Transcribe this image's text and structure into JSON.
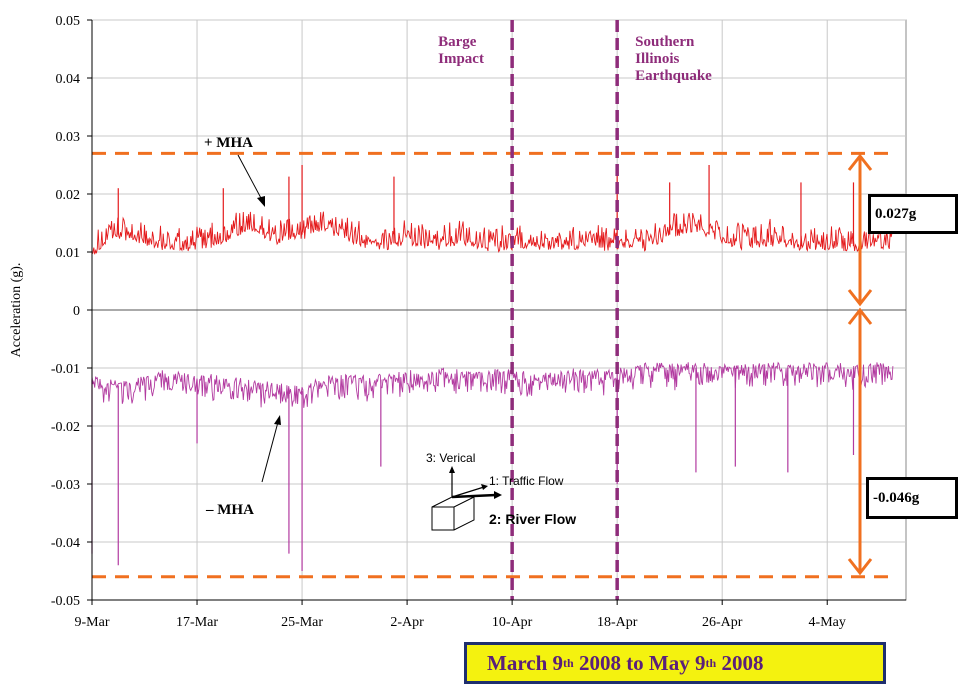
{
  "chart_data": {
    "type": "line",
    "title": "",
    "xlabel": "",
    "ylabel": "Acceleration (g).",
    "ylim": [
      -0.05,
      0.05
    ],
    "y_ticks": [
      "0.05",
      "0.04",
      "0.03",
      "0.02",
      "0.01",
      "0",
      "-0.01",
      "-0.02",
      "-0.03",
      "-0.04",
      "-0.05"
    ],
    "x_ticks": [
      "9-Mar",
      "17-Mar",
      "25-Mar",
      "2-Apr",
      "10-Apr",
      "18-Apr",
      "26-Apr",
      "4-May"
    ],
    "x_range": [
      "2008-03-09",
      "2008-05-10"
    ],
    "grid": true,
    "series": [
      {
        "name": "+ MHA",
        "color": "#e41a1c",
        "x": [
          "2008-03-09",
          "2008-03-11",
          "2008-03-13",
          "2008-03-15",
          "2008-03-17",
          "2008-03-19",
          "2008-03-21",
          "2008-03-23",
          "2008-03-25",
          "2008-03-27",
          "2008-03-29",
          "2008-03-31",
          "2008-04-02",
          "2008-04-04",
          "2008-04-06",
          "2008-04-08",
          "2008-04-10",
          "2008-04-12",
          "2008-04-14",
          "2008-04-16",
          "2008-04-18",
          "2008-04-20",
          "2008-04-22",
          "2008-04-24",
          "2008-04-26",
          "2008-04-28",
          "2008-04-30",
          "2008-05-02",
          "2008-05-04",
          "2008-05-06",
          "2008-05-08",
          "2008-05-09"
        ],
        "y": [
          0.01,
          0.013,
          0.012,
          0.011,
          0.011,
          0.012,
          0.014,
          0.012,
          0.013,
          0.014,
          0.012,
          0.011,
          0.012,
          0.011,
          0.012,
          0.011,
          0.011,
          0.011,
          0.011,
          0.011,
          0.011,
          0.011,
          0.013,
          0.014,
          0.012,
          0.011,
          0.012,
          0.011,
          0.011,
          0.011,
          0.011,
          0.011
        ],
        "peaks": [
          {
            "x": "2008-03-11",
            "y": 0.021
          },
          {
            "x": "2008-03-19",
            "y": 0.021
          },
          {
            "x": "2008-03-24",
            "y": 0.023
          },
          {
            "x": "2008-03-25",
            "y": 0.025
          },
          {
            "x": "2008-04-01",
            "y": 0.023
          },
          {
            "x": "2008-04-18",
            "y": 0.025
          },
          {
            "x": "2008-04-22",
            "y": 0.022
          },
          {
            "x": "2008-04-25",
            "y": 0.025
          },
          {
            "x": "2008-05-02",
            "y": 0.022
          },
          {
            "x": "2008-05-06",
            "y": 0.022
          }
        ]
      },
      {
        "name": "– MHA",
        "color": "#b23aa0",
        "x": [
          "2008-03-09",
          "2008-03-11",
          "2008-03-13",
          "2008-03-15",
          "2008-03-17",
          "2008-03-19",
          "2008-03-21",
          "2008-03-23",
          "2008-03-25",
          "2008-03-27",
          "2008-03-29",
          "2008-03-31",
          "2008-04-02",
          "2008-04-04",
          "2008-04-06",
          "2008-04-08",
          "2008-04-10",
          "2008-04-12",
          "2008-04-14",
          "2008-04-16",
          "2008-04-18",
          "2008-04-20",
          "2008-04-22",
          "2008-04-24",
          "2008-04-26",
          "2008-04-28",
          "2008-04-30",
          "2008-05-02",
          "2008-05-04",
          "2008-05-06",
          "2008-05-08",
          "2008-05-09"
        ],
        "y": [
          -0.012,
          -0.013,
          -0.012,
          -0.011,
          -0.012,
          -0.012,
          -0.013,
          -0.013,
          -0.014,
          -0.012,
          -0.012,
          -0.012,
          -0.011,
          -0.011,
          -0.011,
          -0.011,
          -0.011,
          -0.012,
          -0.011,
          -0.011,
          -0.011,
          -0.01,
          -0.01,
          -0.01,
          -0.01,
          -0.01,
          -0.01,
          -0.01,
          -0.01,
          -0.01,
          -0.01,
          -0.01
        ],
        "peaks": [
          {
            "x": "2008-03-09",
            "y": -0.042
          },
          {
            "x": "2008-03-11",
            "y": -0.044
          },
          {
            "x": "2008-03-17",
            "y": -0.023
          },
          {
            "x": "2008-03-24",
            "y": -0.042
          },
          {
            "x": "2008-03-25",
            "y": -0.045
          },
          {
            "x": "2008-03-31",
            "y": -0.027
          },
          {
            "x": "2008-04-18",
            "y": -0.03
          },
          {
            "x": "2008-04-24",
            "y": -0.028
          },
          {
            "x": "2008-04-27",
            "y": -0.027
          },
          {
            "x": "2008-05-01",
            "y": -0.028
          },
          {
            "x": "2008-05-06",
            "y": -0.025
          }
        ]
      }
    ],
    "threshold_lines": [
      {
        "y": 0.027,
        "color": "#f07020",
        "style": "dashed"
      },
      {
        "y": -0.046,
        "color": "#f07020",
        "style": "dashed"
      }
    ],
    "event_lines": [
      {
        "x": "2008-04-10",
        "label": [
          "Barge",
          "Impact"
        ],
        "color": "#8e2c7a"
      },
      {
        "x": "2008-04-18",
        "label": [
          "Southern",
          "Illinois",
          "Earthquake"
        ],
        "color": "#8e2c7a"
      }
    ],
    "annotations": {
      "plus_label": "+ MHA",
      "minus_label": "– MHA",
      "pos_value": "0.027g",
      "neg_value": "-0.046g",
      "axis_vertical": "3: Verical",
      "axis_traffic": "1: Traffic Flow",
      "axis_river": "2: River Flow"
    }
  },
  "date_range": {
    "prefix": "March 9",
    "sup1": "th",
    "middle": " 2008 to May 9",
    "sup2": "th",
    "suffix": " 2008"
  }
}
